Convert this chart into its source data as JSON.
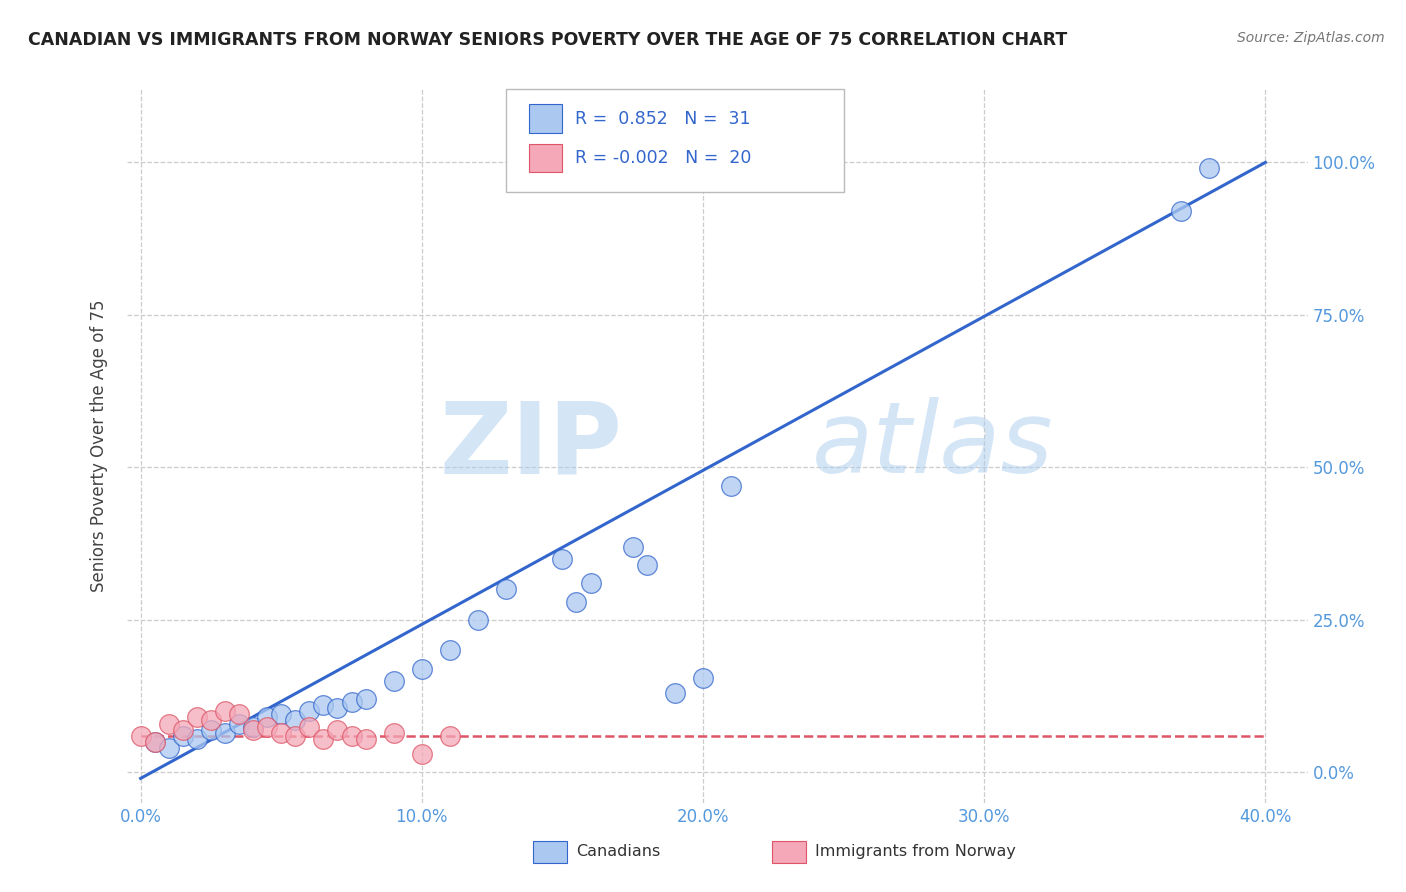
{
  "title": "CANADIAN VS IMMIGRANTS FROM NORWAY SENIORS POVERTY OVER THE AGE OF 75 CORRELATION CHART",
  "source": "Source: ZipAtlas.com",
  "ylabel": "Seniors Poverty Over the Age of 75",
  "xlabel": "",
  "xlim": [
    -0.005,
    0.415
  ],
  "ylim": [
    -0.05,
    1.12
  ],
  "xticks": [
    0.0,
    0.1,
    0.2,
    0.3,
    0.4
  ],
  "xtick_labels": [
    "0.0%",
    "10.0%",
    "20.0%",
    "30.0%",
    "40.0%"
  ],
  "yticks": [
    0.0,
    0.25,
    0.5,
    0.75,
    1.0
  ],
  "ytick_labels": [
    "0.0%",
    "25.0%",
    "50.0%",
    "75.0%",
    "100.0%"
  ],
  "canadian_R": "0.852",
  "canadian_N": "31",
  "norway_R": "-0.002",
  "norway_N": "20",
  "canadian_color": "#aac8f0",
  "norway_color": "#f4a8b8",
  "canadian_line_color": "#3366cc",
  "norway_line_color": "#dd5566",
  "legend_labels": [
    "Canadians",
    "Immigrants from Norway"
  ],
  "watermark_zip": "ZIP",
  "watermark_atlas": "atlas",
  "canadians_x": [
    0.005,
    0.01,
    0.015,
    0.02,
    0.025,
    0.03,
    0.035,
    0.04,
    0.045,
    0.05,
    0.055,
    0.06,
    0.065,
    0.07,
    0.075,
    0.08,
    0.09,
    0.1,
    0.11,
    0.12,
    0.13,
    0.15,
    0.155,
    0.16,
    0.175,
    0.18,
    0.19,
    0.2,
    0.21,
    0.37,
    0.38
  ],
  "canadians_y": [
    0.05,
    0.04,
    0.06,
    0.055,
    0.07,
    0.065,
    0.08,
    0.075,
    0.09,
    0.095,
    0.085,
    0.1,
    0.11,
    0.105,
    0.115,
    0.12,
    0.15,
    0.17,
    0.2,
    0.25,
    0.3,
    0.35,
    0.28,
    0.31,
    0.37,
    0.34,
    0.13,
    0.155,
    0.47,
    0.92,
    0.99
  ],
  "norway_x": [
    0.0,
    0.005,
    0.01,
    0.015,
    0.02,
    0.025,
    0.03,
    0.035,
    0.04,
    0.045,
    0.05,
    0.055,
    0.06,
    0.065,
    0.07,
    0.075,
    0.08,
    0.09,
    0.1,
    0.11
  ],
  "norway_y": [
    0.06,
    0.05,
    0.08,
    0.07,
    0.09,
    0.085,
    0.1,
    0.095,
    0.07,
    0.075,
    0.065,
    0.06,
    0.075,
    0.055,
    0.07,
    0.06,
    0.055,
    0.065,
    0.03,
    0.06
  ],
  "canadian_trend_x": [
    0.0,
    0.4
  ],
  "canadian_trend_y": [
    -0.01,
    1.0
  ],
  "norway_trend_x": [
    0.0,
    0.4
  ],
  "norway_trend_y": [
    0.06,
    0.06
  ],
  "background_color": "#ffffff",
  "grid_color": "#cccccc",
  "tick_color": "#5599dd",
  "label_color": "#444444"
}
